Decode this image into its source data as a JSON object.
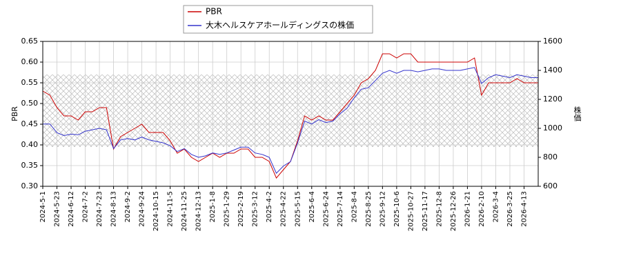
{
  "chart_data": {
    "type": "line",
    "x": [
      0,
      7,
      14,
      21,
      28,
      35,
      42,
      49,
      56,
      63,
      70,
      77,
      84,
      91,
      98,
      105,
      112,
      119,
      126,
      133,
      140,
      147,
      154,
      161,
      168,
      175,
      182,
      189,
      196,
      203,
      210,
      217,
      224,
      231,
      238,
      245,
      252,
      259,
      266,
      273,
      280,
      287,
      294,
      301,
      308,
      315,
      322,
      329,
      336,
      343,
      350,
      357,
      364,
      371,
      378,
      385,
      392,
      399,
      406,
      413,
      420,
      427,
      434,
      441,
      448,
      455,
      462,
      469,
      476,
      483,
      490
    ],
    "xlim": [
      0,
      490
    ],
    "xticks": [
      {
        "value": 0,
        "label": "2024-5-1"
      },
      {
        "value": 14,
        "label": "2024-5-23"
      },
      {
        "value": 28,
        "label": "2024-6-12"
      },
      {
        "value": 42,
        "label": "2024-7-2"
      },
      {
        "value": 56,
        "label": "2024-7-23"
      },
      {
        "value": 70,
        "label": "2024-8-13"
      },
      {
        "value": 84,
        "label": "2024-9-2"
      },
      {
        "value": 98,
        "label": "2024-9-24"
      },
      {
        "value": 112,
        "label": "2024-10-15"
      },
      {
        "value": 126,
        "label": "2024-11-5"
      },
      {
        "value": 140,
        "label": "2024-11-25"
      },
      {
        "value": 154,
        "label": "2024-12-13"
      },
      {
        "value": 168,
        "label": "2025-1-8"
      },
      {
        "value": 182,
        "label": "2025-1-29"
      },
      {
        "value": 196,
        "label": "2025-2-19"
      },
      {
        "value": 210,
        "label": "2025-3-12"
      },
      {
        "value": 224,
        "label": "2025-4-2"
      },
      {
        "value": 238,
        "label": "2025-4-22"
      },
      {
        "value": 252,
        "label": "2025-5-15"
      },
      {
        "value": 266,
        "label": "2025-6-4"
      },
      {
        "value": 280,
        "label": "2025-6-24"
      },
      {
        "value": 294,
        "label": "2025-7-14"
      },
      {
        "value": 308,
        "label": "2025-8-4"
      },
      {
        "value": 322,
        "label": "2025-8-25"
      },
      {
        "value": 336,
        "label": "2025-9-12"
      },
      {
        "value": 350,
        "label": "2025-10-6"
      },
      {
        "value": 364,
        "label": "2025-10-27"
      },
      {
        "value": 378,
        "label": "2025-11-17"
      },
      {
        "value": 392,
        "label": "2025-12-8"
      },
      {
        "value": 406,
        "label": "2025-12-26"
      },
      {
        "value": 420,
        "label": "2026-1-21"
      },
      {
        "value": 434,
        "label": "2026-2-10"
      },
      {
        "value": 448,
        "label": "2026-3-4"
      },
      {
        "value": 462,
        "label": "2026-3-25"
      },
      {
        "value": 476,
        "label": "2026-4-13"
      }
    ],
    "ylabel": "PBR",
    "y2label": "株価",
    "ylim": [
      0.3,
      0.65
    ],
    "yticks": [
      {
        "value": 0.3,
        "label": "0.30"
      },
      {
        "value": 0.35,
        "label": "0.35"
      },
      {
        "value": 0.4,
        "label": "0.40"
      },
      {
        "value": 0.45,
        "label": "0.45"
      },
      {
        "value": 0.5,
        "label": "0.50"
      },
      {
        "value": 0.55,
        "label": "0.55"
      },
      {
        "value": 0.6,
        "label": "0.60"
      },
      {
        "value": 0.65,
        "label": "0.65"
      }
    ],
    "y2lim": [
      600,
      1600
    ],
    "y2ticks": [
      600,
      800,
      1000,
      1200,
      1400,
      1600
    ],
    "grid": true,
    "legend": "top",
    "band": [
      0.395,
      0.57
    ],
    "series": [
      {
        "name": "PBR",
        "color": "#cc0000",
        "values": [
          0.53,
          0.52,
          0.49,
          0.47,
          0.47,
          0.46,
          0.48,
          0.48,
          0.49,
          0.49,
          0.39,
          0.42,
          0.43,
          0.44,
          0.45,
          0.43,
          0.43,
          0.43,
          0.41,
          0.38,
          0.39,
          0.37,
          0.36,
          0.37,
          0.38,
          0.37,
          0.38,
          0.38,
          0.39,
          0.39,
          0.37,
          0.37,
          0.36,
          0.32,
          0.34,
          0.36,
          0.41,
          0.47,
          0.46,
          0.47,
          0.46,
          0.46,
          0.48,
          0.5,
          0.52,
          0.55,
          0.56,
          0.58,
          0.62,
          0.62,
          0.61,
          0.62,
          0.62,
          0.6,
          0.6,
          0.6,
          0.6,
          0.6,
          0.6,
          0.6,
          0.6,
          0.61,
          0.52,
          0.55,
          0.55,
          0.55,
          0.55,
          0.56,
          0.55,
          0.55,
          0.55
        ]
      },
      {
        "name": "大木ヘルスケアホールディングスの株価",
        "color": "#3333cc",
        "axis": "y2",
        "values": [
          1030,
          1030,
          970,
          950,
          960,
          955,
          980,
          990,
          1000,
          990,
          860,
          920,
          930,
          920,
          940,
          920,
          910,
          900,
          880,
          840,
          860,
          820,
          800,
          810,
          830,
          820,
          830,
          850,
          870,
          870,
          830,
          820,
          800,
          690,
          740,
          770,
          900,
          1050,
          1030,
          1060,
          1040,
          1050,
          1100,
          1140,
          1210,
          1270,
          1280,
          1330,
          1380,
          1400,
          1380,
          1400,
          1400,
          1390,
          1400,
          1410,
          1410,
          1400,
          1400,
          1400,
          1410,
          1420,
          1310,
          1350,
          1370,
          1360,
          1350,
          1370,
          1360,
          1350,
          1350
        ]
      }
    ]
  }
}
